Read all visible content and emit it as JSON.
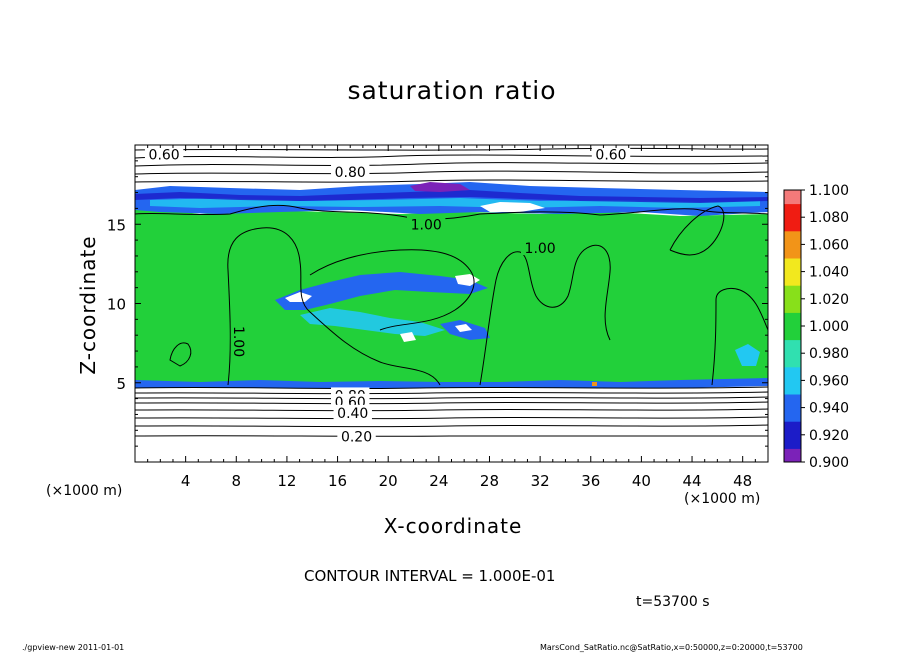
{
  "chart_data": {
    "type": "heatmap",
    "title": "saturation ratio",
    "xlabel": "X-coordinate",
    "ylabel": "Z-coordinate",
    "x_unit": "(×1000 m)",
    "xlim": [
      0,
      50
    ],
    "ylim": [
      0,
      20
    ],
    "x_ticks": [
      4,
      8,
      12,
      16,
      20,
      24,
      28,
      32,
      36,
      40,
      44,
      48
    ],
    "y_ticks": [
      5,
      10,
      15
    ],
    "colorbar": {
      "levels": [
        "0.900",
        "0.920",
        "0.940",
        "0.960",
        "0.980",
        "1.000",
        "1.020",
        "1.040",
        "1.060",
        "1.080",
        "1.100"
      ],
      "colors": [
        "#7b22b8",
        "#1c1cc8",
        "#2466f0",
        "#22c8f2",
        "#30e0b0",
        "#22d03a",
        "#88e01a",
        "#f2e81e",
        "#f29418",
        "#f01c12",
        "#f47a7a",
        "#f8b8b8"
      ]
    },
    "contour_labels": [
      {
        "text": "0.60",
        "x": 2.3,
        "z": 19.4
      },
      {
        "text": "0.60",
        "x": 37.6,
        "z": 19.4
      },
      {
        "text": "0.80",
        "x": 17.0,
        "z": 18.3
      },
      {
        "text": "1.00",
        "x": 23.0,
        "z": 15.0
      },
      {
        "text": "1.00",
        "x": 32.0,
        "z": 13.5
      },
      {
        "text": "1.00",
        "x": 8.2,
        "z": 7.6
      },
      {
        "text": "0.80",
        "x": 17.0,
        "z": 4.2
      },
      {
        "text": "0.60",
        "x": 17.0,
        "z": 3.8
      },
      {
        "text": "0.40",
        "x": 17.2,
        "z": 3.1
      },
      {
        "text": "0.20",
        "x": 17.5,
        "z": 1.6
      }
    ],
    "contour_interval_text": "CONTOUR INTERVAL = 1.000E-01",
    "time_text": "t=53700 s"
  },
  "footer": {
    "left": "./gpview-new   2011-01-01",
    "right": "MarsCond_SatRatio.nc@SatRatio,x=0:50000,z=0:20000,t=53700"
  }
}
